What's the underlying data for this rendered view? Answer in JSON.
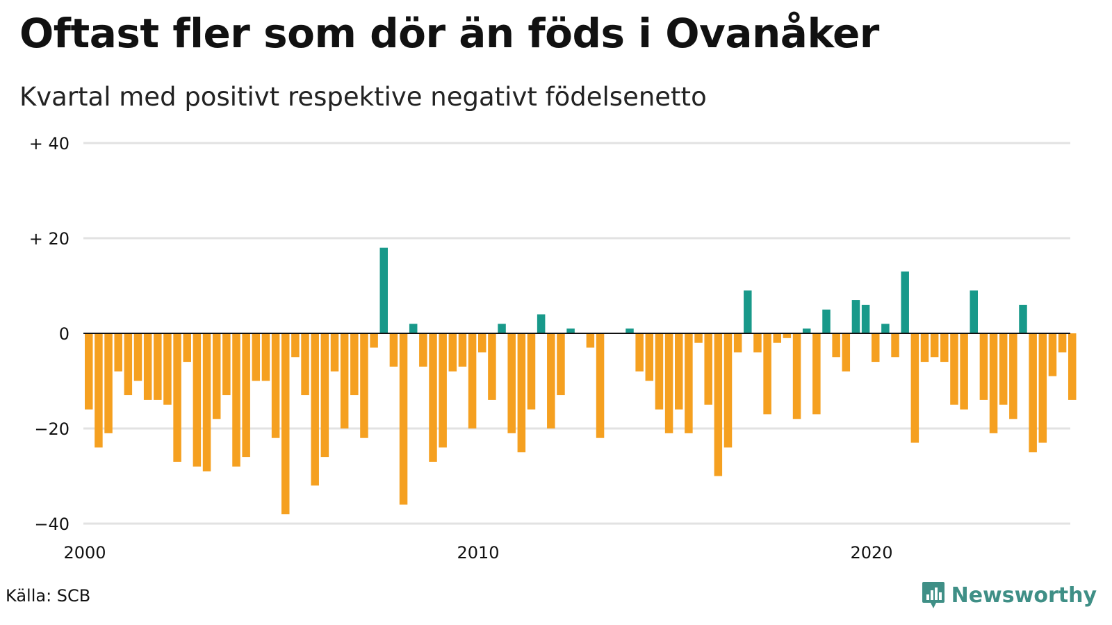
{
  "title": "Oftast fler som dör än föds i Ovanåker",
  "subtitle": "Kvartal med positivt respektive negativt födelsenetto",
  "source": "Källa: SCB",
  "brand": "Newsworthy",
  "colors": {
    "positive": "#18998a",
    "negative": "#f5a020",
    "grid": "#e2e2e2",
    "zero": "#111111",
    "brand": "#3f8f86"
  },
  "chart_data": {
    "type": "bar",
    "ylim": [
      -40,
      40
    ],
    "y_ticks": [
      {
        "value": 40,
        "label": "+ 40"
      },
      {
        "value": 20,
        "label": "+ 20"
      },
      {
        "value": 0,
        "label": "0"
      },
      {
        "value": -20,
        "label": "−20"
      },
      {
        "value": -40,
        "label": "−40"
      }
    ],
    "x_ticks": [
      {
        "year": 2000,
        "label": "2000"
      },
      {
        "year": 2010,
        "label": "2010"
      },
      {
        "year": 2020,
        "label": "2020"
      }
    ],
    "start": "2000 Q1",
    "grid": true,
    "values": [
      -16,
      -24,
      -21,
      -8,
      -13,
      -10,
      -14,
      -14,
      -15,
      -27,
      -6,
      -28,
      -29,
      -18,
      -13,
      -28,
      -26,
      -10,
      -10,
      -22,
      -38,
      -5,
      -13,
      -32,
      -26,
      -8,
      -20,
      -13,
      -22,
      -3,
      18,
      -7,
      -36,
      2,
      -7,
      -27,
      -24,
      -8,
      -7,
      -20,
      -4,
      -14,
      2,
      -21,
      -25,
      -16,
      4,
      -20,
      -13,
      1,
      0,
      -3,
      -22,
      0,
      0,
      1,
      -8,
      -10,
      -16,
      -21,
      -16,
      -21,
      -2,
      -15,
      -30,
      -24,
      -4,
      9,
      -4,
      -17,
      -2,
      -1,
      -18,
      1,
      -17,
      5,
      -5,
      -8,
      7,
      6,
      -6,
      2,
      -5,
      13,
      -23,
      -6,
      -5,
      -6,
      -15,
      -16,
      9,
      -14,
      -21,
      -15,
      -18,
      6,
      -25,
      -23,
      -9,
      -4,
      -14
    ]
  }
}
